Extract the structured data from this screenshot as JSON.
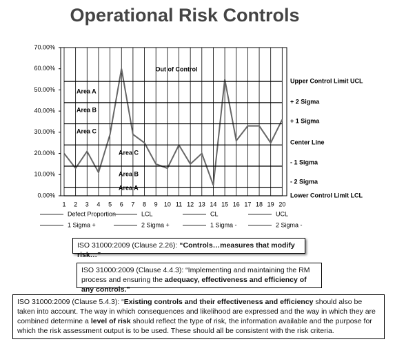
{
  "chart_data": {
    "type": "line",
    "title": "Operational Risk Controls",
    "x": [
      1,
      2,
      3,
      4,
      5,
      6,
      7,
      8,
      9,
      10,
      11,
      12,
      13,
      14,
      15,
      16,
      17,
      18,
      19,
      20
    ],
    "xlim": [
      0.7,
      20.4
    ],
    "xticks": [
      1,
      2,
      3,
      4,
      5,
      6,
      7,
      8,
      9,
      10,
      11,
      12,
      13,
      14,
      15,
      16,
      17,
      18,
      19,
      20
    ],
    "xgrid": true,
    "ylim": [
      0,
      70
    ],
    "yticks": [
      {
        "value": 0,
        "label": "0.00%"
      },
      {
        "value": 10,
        "label": "10.00%"
      },
      {
        "value": 20,
        "label": "20.00%"
      },
      {
        "value": 30,
        "label": "30.00%"
      },
      {
        "value": 40,
        "label": "40.00%"
      },
      {
        "value": 50,
        "label": "50.00%"
      },
      {
        "value": 60,
        "label": "60.00%"
      },
      {
        "value": 70,
        "label": "70.00%"
      }
    ],
    "series": [
      {
        "name": "Defect Proportion",
        "color": "#666666",
        "values": [
          20,
          13,
          21,
          11,
          29,
          60,
          29,
          25,
          15,
          13,
          24,
          15,
          20,
          5,
          55,
          26,
          33,
          33,
          25,
          36
        ]
      },
      {
        "name": "LCL",
        "color": "#000000",
        "values": [
          0,
          0,
          0,
          0,
          0,
          0,
          0,
          0,
          0,
          0,
          0,
          0,
          0,
          0,
          0,
          0,
          0,
          0,
          0,
          0
        ]
      },
      {
        "name": "CL",
        "color": "#000000",
        "values": [
          24,
          24,
          24,
          24,
          24,
          24,
          24,
          24,
          24,
          24,
          24,
          24,
          24,
          24,
          24,
          24,
          24,
          24,
          24,
          24
        ]
      },
      {
        "name": "UCL",
        "color": "#000000",
        "values": [
          54,
          54,
          54,
          54,
          54,
          54,
          54,
          54,
          54,
          54,
          54,
          54,
          54,
          54,
          54,
          54,
          54,
          54,
          54,
          54
        ]
      },
      {
        "name": "1 Sigma +",
        "color": "#000000",
        "values": [
          34,
          34,
          34,
          34,
          34,
          34,
          34,
          34,
          34,
          34,
          34,
          34,
          34,
          34,
          34,
          34,
          34,
          34,
          34,
          34
        ]
      },
      {
        "name": "2 Sigma +",
        "color": "#000000",
        "values": [
          44,
          44,
          44,
          44,
          44,
          44,
          44,
          44,
          44,
          44,
          44,
          44,
          44,
          44,
          44,
          44,
          44,
          44,
          44,
          44
        ]
      },
      {
        "name": "1 Sigma -",
        "color": "#000000",
        "values": [
          14,
          14,
          14,
          14,
          14,
          14,
          14,
          14,
          14,
          14,
          14,
          14,
          14,
          14,
          14,
          14,
          14,
          14,
          14,
          14
        ]
      },
      {
        "name": "2 Sigma -",
        "color": "#000000",
        "values": [
          4,
          4,
          4,
          4,
          4,
          4,
          4,
          4,
          4,
          4,
          4,
          4,
          4,
          4,
          4,
          4,
          4,
          4,
          4,
          4
        ]
      }
    ],
    "annotations": [
      "Out of Control",
      "Upper Control Limit UCL",
      "+ 2 Sigma",
      "+ 1 Sigma",
      "Center Line",
      "- 1 Sigma",
      "- 2 Sigma",
      "Lower Control Limit LCL",
      "Area A",
      "Area B",
      "Area C",
      "Area C",
      "Area B",
      "Area A"
    ]
  },
  "notes": [
    {
      "parts": [
        "ISO 31000:2009 (Clause 2.26): ",
        "“Controls…measures that modify risk…”"
      ]
    },
    {
      "parts": [
        "ISO 31000:2009 (Clause 4.4.3): “Implementing and maintaining the RM process and ensuring the ",
        "adequacy, effectiveness and efficiency of any controls.”"
      ]
    },
    {
      "parts": [
        "ISO 31000:2009 (Clause 5.4.3): “",
        "Existing controls and their effectiveness and efficiency",
        " should also be taken into account. The way in which consequences and likelihood are expressed and the way in which they are combined determine a ",
        "level of risk",
        " should reflect the type of risk, the information available and the purpose for which the risk assessment output is to be used. These should all be consistent with the risk criteria."
      ]
    }
  ]
}
